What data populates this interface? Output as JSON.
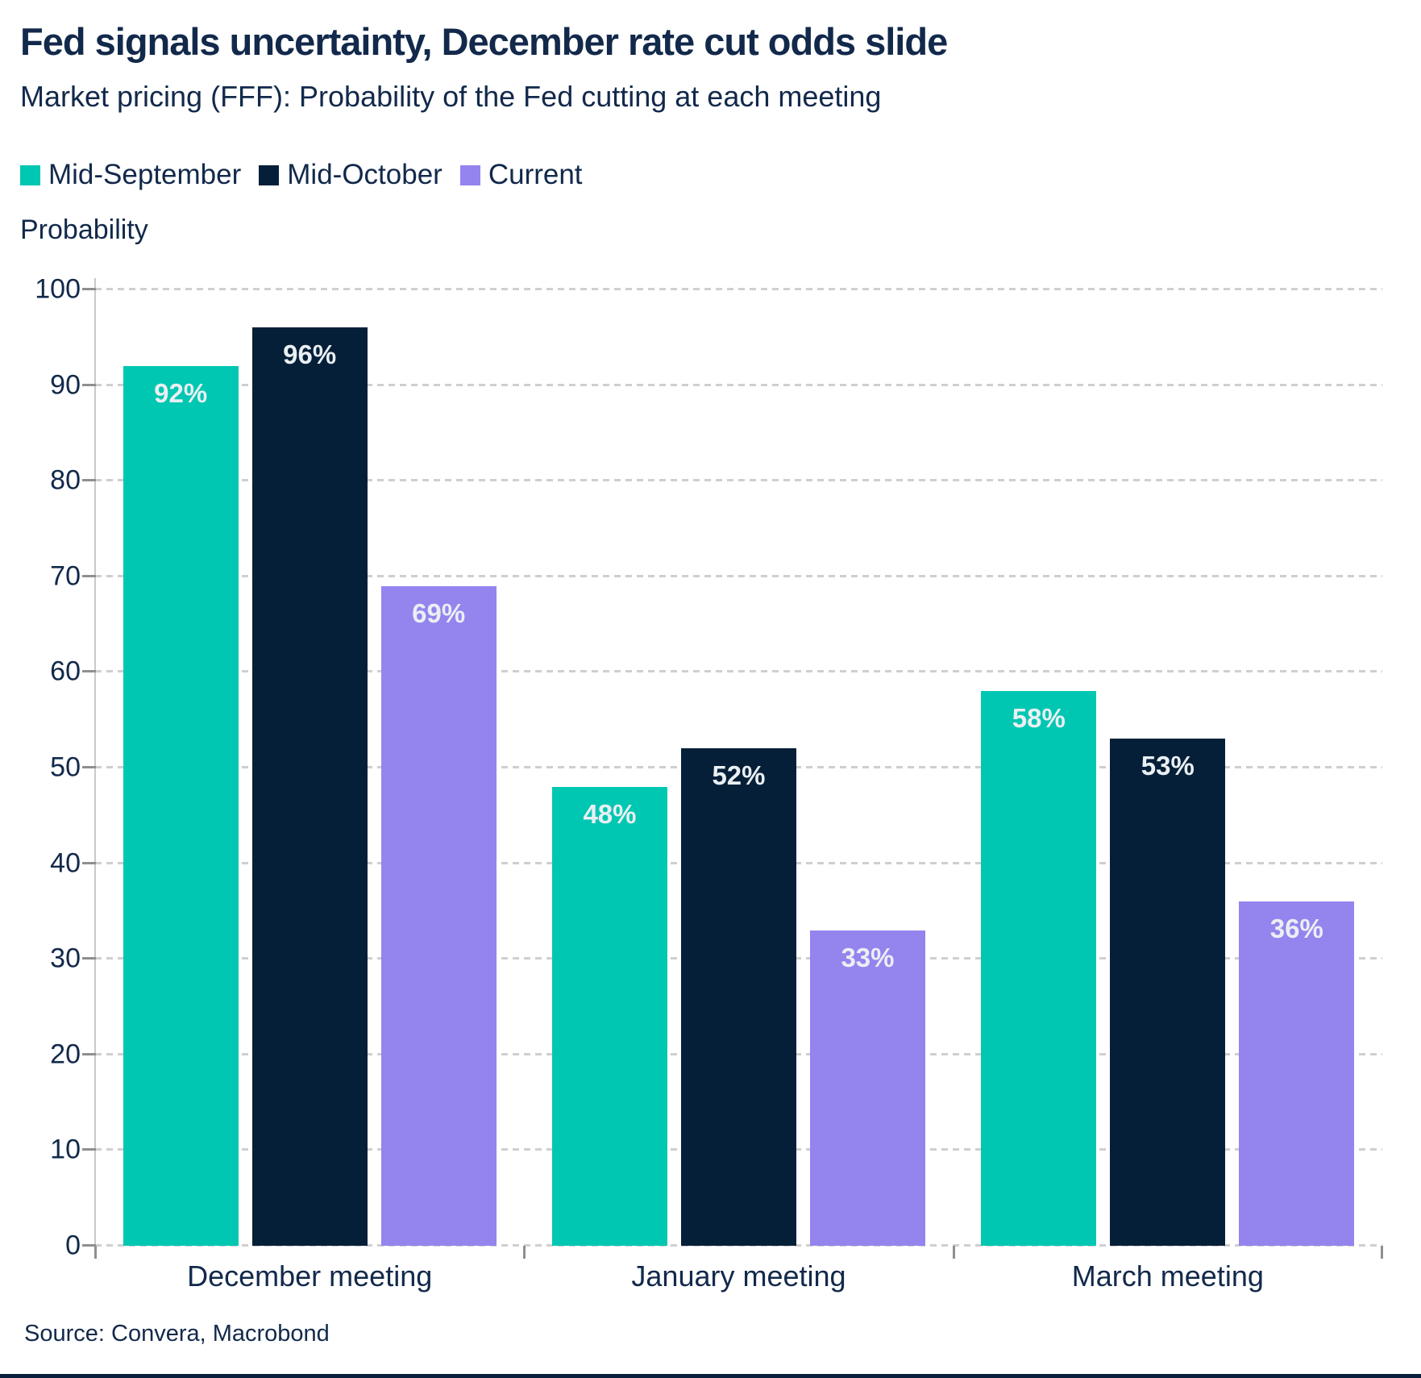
{
  "chart_data": {
    "type": "bar",
    "title": "Fed signals uncertainty, December rate cut odds slide",
    "subtitle": "Market pricing (FFF): Probability of the Fed cutting at each meeting",
    "ylabel": "Probability",
    "xlabel": "",
    "ylim": [
      0,
      100
    ],
    "yticks": [
      0,
      10,
      20,
      30,
      40,
      50,
      60,
      70,
      80,
      90,
      100
    ],
    "grid": "horizontal-dashed",
    "legend_position": "top-left",
    "categories": [
      "December meeting",
      "January meeting",
      "March meeting"
    ],
    "series": [
      {
        "name": "Mid-September",
        "color": "#00C7B2",
        "values": [
          92,
          48,
          58
        ],
        "labels": [
          "92%",
          "48%",
          "58%"
        ]
      },
      {
        "name": "Mid-October",
        "color": "#051F38",
        "values": [
          96,
          52,
          53
        ],
        "labels": [
          "96%",
          "52%",
          "53%"
        ]
      },
      {
        "name": "Current",
        "color": "#9484EE",
        "values": [
          69,
          33,
          36
        ],
        "labels": [
          "69%",
          "33%",
          "36%"
        ]
      }
    ],
    "source": "Source: Convera, Macrobond"
  },
  "colors": {
    "text": "#12294B",
    "gridline": "#CFCFCF",
    "tick": "#8F8F8F",
    "bar_label": "#EAEFF3",
    "footer_rule": "#0A1F3C"
  }
}
